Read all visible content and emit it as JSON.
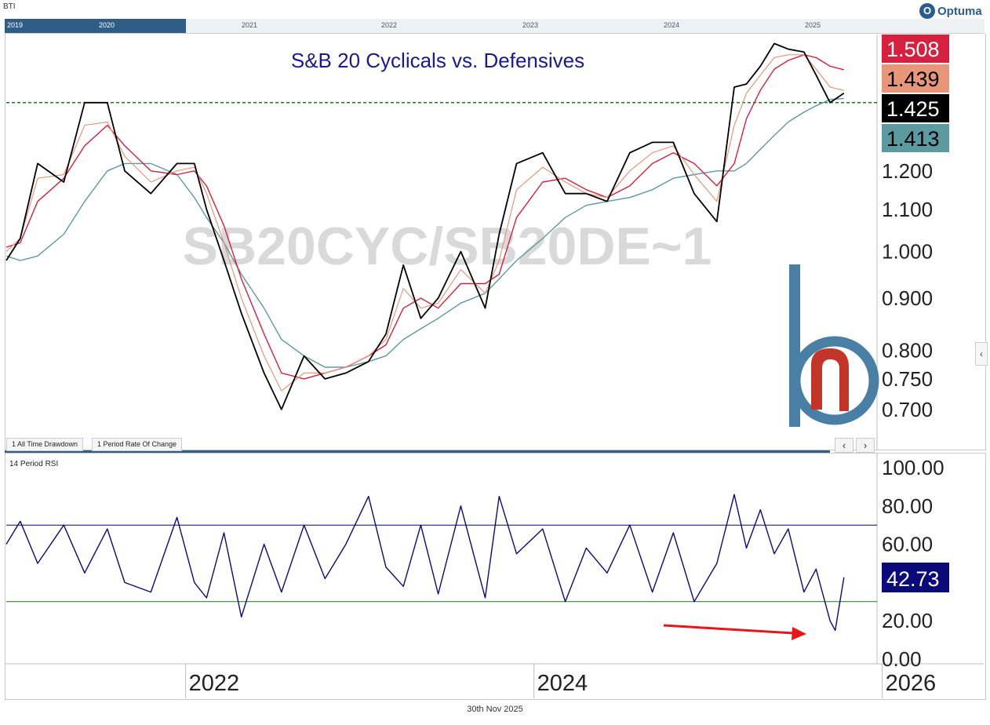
{
  "header": {
    "ticker": "BTI",
    "brand": "Optuma",
    "brand_mark": "O"
  },
  "navigator": {
    "years": [
      "2019",
      "2020",
      "2021",
      "2022",
      "2023",
      "2024",
      "2025"
    ]
  },
  "tabs": [
    "1 All Time Drawdown",
    "1 Period Rate Of Change"
  ],
  "footer": {
    "date": "30th Nov 2025"
  },
  "icons": {
    "scroll_left": "‹",
    "scroll_right": "›",
    "side_handle": "‹"
  },
  "colors": {
    "price": "#000000",
    "ma_fast": "#e8957a",
    "ma_mid": "#d6203f",
    "ma_slow": "#5b9aa0",
    "support": "#1e7a1e",
    "rsi": "#0a0a7a",
    "rsi_upper": "#0a0a60",
    "rsi_lower": "#1e7a1e",
    "arrow": "#e8151b",
    "title": "#1a1a8c",
    "watermark": "#d9d9d9",
    "logo_blue": "#4a7fa5",
    "logo_red": "#c2362a"
  },
  "chart_data": [
    {
      "type": "line",
      "title": "S&B 20 Cyclicals vs. Defensives",
      "watermark": "SB20CYC/SB20DE~1",
      "y_scale": "log",
      "ylim": [
        0.66,
        1.63
      ],
      "xlim": [
        2020.97,
        2025.97
      ],
      "y_ticks": [
        "1.200",
        "1.100",
        "1.000",
        "0.900",
        "0.800",
        "0.750",
        "0.700"
      ],
      "support_level": 1.4,
      "x": [
        2020.97,
        2021.05,
        2021.15,
        2021.3,
        2021.42,
        2021.55,
        2021.65,
        2021.8,
        2021.95,
        2022.05,
        2022.12,
        2022.22,
        2022.32,
        2022.45,
        2022.55,
        2022.68,
        2022.8,
        2022.92,
        2023.05,
        2023.15,
        2023.25,
        2023.35,
        2023.45,
        2023.58,
        2023.72,
        2023.8,
        2023.9,
        2024.05,
        2024.18,
        2024.3,
        2024.42,
        2024.55,
        2024.68,
        2024.8,
        2024.92,
        2025.05,
        2025.15,
        2025.22,
        2025.3,
        2025.38,
        2025.46,
        2025.55,
        2025.62,
        2025.7,
        2025.78
      ],
      "series": [
        {
          "values": [
            0.98,
            1.03,
            1.22,
            1.17,
            1.4,
            1.4,
            1.2,
            1.14,
            1.22,
            1.22,
            1.1,
            0.98,
            0.87,
            0.76,
            0.7,
            0.79,
            0.75,
            0.76,
            0.78,
            0.83,
            0.97,
            0.86,
            0.9,
            1.0,
            0.88,
            1.04,
            1.22,
            1.25,
            1.14,
            1.14,
            1.12,
            1.25,
            1.28,
            1.28,
            1.14,
            1.07,
            1.45,
            1.46,
            1.52,
            1.6,
            1.58,
            1.57,
            1.49,
            1.4,
            1.43
          ]
        },
        {
          "values": [
            1.0,
            1.03,
            1.18,
            1.19,
            1.33,
            1.34,
            1.24,
            1.17,
            1.2,
            1.21,
            1.14,
            1.02,
            0.9,
            0.79,
            0.73,
            0.76,
            0.76,
            0.77,
            0.79,
            0.82,
            0.92,
            0.88,
            0.89,
            0.96,
            0.91,
            0.98,
            1.15,
            1.21,
            1.17,
            1.14,
            1.13,
            1.2,
            1.25,
            1.27,
            1.19,
            1.12,
            1.33,
            1.43,
            1.49,
            1.55,
            1.56,
            1.56,
            1.51,
            1.45,
            1.439
          ]
        },
        {
          "values": [
            1.01,
            1.02,
            1.12,
            1.18,
            1.27,
            1.33,
            1.27,
            1.2,
            1.19,
            1.2,
            1.16,
            1.06,
            0.94,
            0.83,
            0.76,
            0.75,
            0.76,
            0.77,
            0.79,
            0.81,
            0.88,
            0.9,
            0.88,
            0.93,
            0.93,
            0.95,
            1.08,
            1.17,
            1.18,
            1.15,
            1.13,
            1.16,
            1.22,
            1.25,
            1.22,
            1.16,
            1.22,
            1.35,
            1.44,
            1.51,
            1.54,
            1.56,
            1.55,
            1.52,
            1.508
          ]
        },
        {
          "values": [
            0.99,
            0.98,
            0.99,
            1.04,
            1.12,
            1.2,
            1.22,
            1.22,
            1.19,
            1.13,
            1.08,
            1.02,
            0.95,
            0.88,
            0.82,
            0.79,
            0.77,
            0.77,
            0.78,
            0.79,
            0.82,
            0.84,
            0.86,
            0.89,
            0.91,
            0.94,
            0.98,
            1.03,
            1.08,
            1.11,
            1.12,
            1.13,
            1.15,
            1.18,
            1.19,
            1.2,
            1.2,
            1.22,
            1.26,
            1.3,
            1.34,
            1.37,
            1.39,
            1.41,
            1.413
          ]
        }
      ],
      "last_values": [
        {
          "label": "1.508",
          "bg": "#d6203f",
          "fg": "#ffffff"
        },
        {
          "label": "1.439",
          "bg": "#e8957a",
          "fg": "#000000"
        },
        {
          "label": "1.425",
          "bg": "#000000",
          "fg": "#ffffff"
        },
        {
          "label": "1.413",
          "bg": "#5b9aa0",
          "fg": "#000000"
        }
      ]
    },
    {
      "type": "line",
      "title": "14 Period RSI",
      "ylim": [
        0,
        100
      ],
      "y_ticks": [
        "100.00",
        "80.00",
        "60.00",
        "20.00",
        "0.00"
      ],
      "levels": [
        70,
        30
      ],
      "x": [
        2020.97,
        2021.05,
        2021.15,
        2021.3,
        2021.42,
        2021.55,
        2021.65,
        2021.8,
        2021.95,
        2022.05,
        2022.12,
        2022.22,
        2022.32,
        2022.45,
        2022.55,
        2022.68,
        2022.8,
        2022.92,
        2023.05,
        2023.15,
        2023.25,
        2023.35,
        2023.45,
        2023.58,
        2023.72,
        2023.8,
        2023.9,
        2024.05,
        2024.18,
        2024.3,
        2024.42,
        2024.55,
        2024.68,
        2024.8,
        2024.92,
        2025.05,
        2025.15,
        2025.22,
        2025.3,
        2025.38,
        2025.46,
        2025.55,
        2025.62,
        2025.7,
        2025.73,
        2025.78
      ],
      "values": [
        60,
        72,
        50,
        70,
        45,
        68,
        40,
        35,
        74,
        40,
        32,
        66,
        22,
        60,
        35,
        70,
        42,
        60,
        85,
        48,
        38,
        70,
        34,
        80,
        32,
        85,
        55,
        68,
        30,
        58,
        45,
        70,
        35,
        66,
        30,
        50,
        86,
        58,
        78,
        55,
        68,
        35,
        47,
        20,
        15,
        42.73
      ],
      "last_value": {
        "label": "42.73",
        "bg": "#0a0a7a",
        "fg": "#ffffff"
      }
    }
  ],
  "x_axis": {
    "labels": [
      "2022",
      "2024",
      "2026"
    ]
  }
}
